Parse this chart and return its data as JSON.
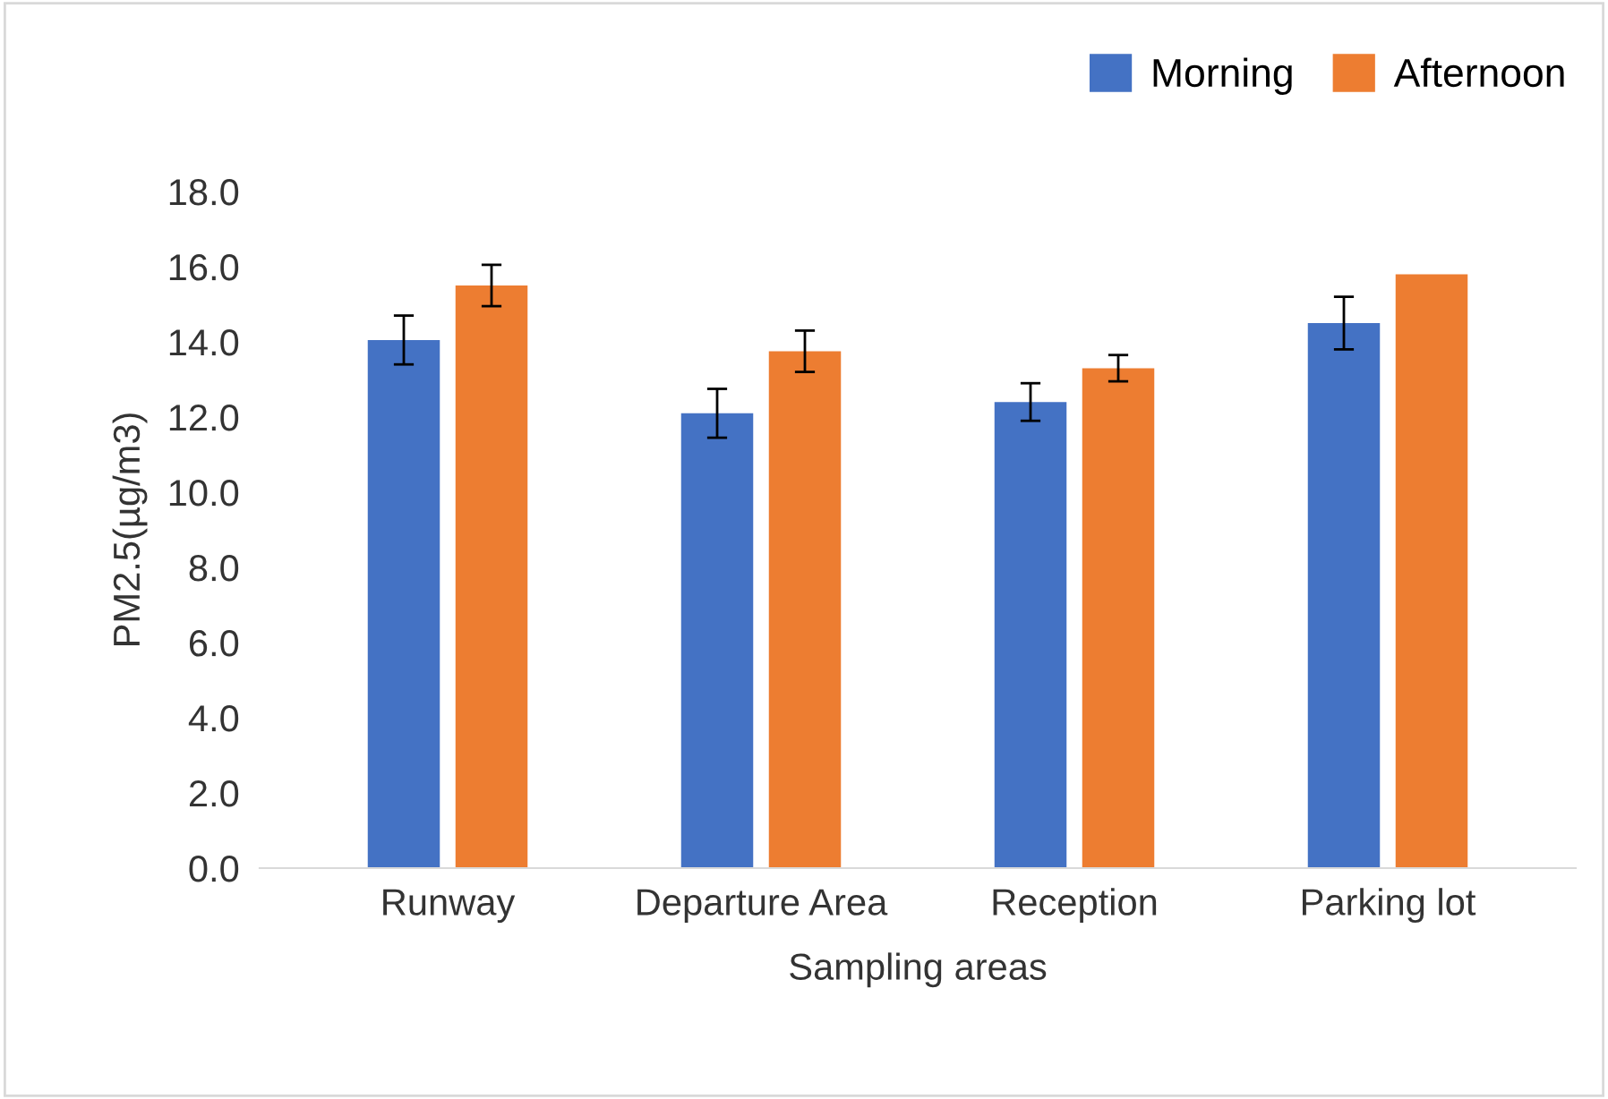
{
  "chart_data": {
    "type": "bar",
    "xlabel": "Sampling areas",
    "ylabel": "PM2.5(µg/m3)",
    "categories": [
      "Runway",
      "Departure Area",
      "Reception",
      "Parking lot"
    ],
    "series": [
      {
        "name": "Morning",
        "color": "#4472c4",
        "values": [
          14.05,
          12.1,
          12.4,
          14.5
        ],
        "errors": [
          0.65,
          0.65,
          0.5,
          0.7
        ]
      },
      {
        "name": "Afternoon",
        "color": "#ed7d31",
        "values": [
          15.5,
          13.75,
          13.3,
          15.8
        ],
        "errors": [
          0.55,
          0.55,
          0.35,
          null
        ]
      }
    ],
    "ylim": [
      0,
      18
    ],
    "yticks": [
      {
        "value": 0,
        "label": "0.0"
      },
      {
        "value": 2,
        "label": "2.0"
      },
      {
        "value": 4,
        "label": "4.0"
      },
      {
        "value": 6,
        "label": "6.0"
      },
      {
        "value": 8,
        "label": "8.0"
      },
      {
        "value": 10,
        "label": "10.0"
      },
      {
        "value": 12,
        "label": "12.0"
      },
      {
        "value": 14,
        "label": "14.0"
      },
      {
        "value": 16,
        "label": "16.0"
      },
      {
        "value": 18,
        "label": "18.0"
      }
    ],
    "grid": false,
    "legend": "top right"
  }
}
